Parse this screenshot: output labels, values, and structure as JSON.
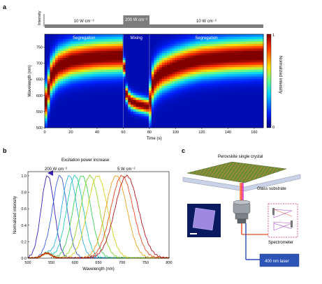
{
  "panel_a": {
    "label": "a",
    "intensity_axis_label": "Intensity",
    "segments": [
      {
        "power": "10 W cm⁻²",
        "region": "Segregation",
        "t_start": 0,
        "t_end": 60
      },
      {
        "power": "200 W cm⁻²",
        "region": "Mixing",
        "t_start": 60,
        "t_end": 80
      },
      {
        "power": "10 W cm⁻²",
        "region": "Segregation",
        "t_start": 80,
        "t_end": 167
      }
    ],
    "colorbar": {
      "label": "Normalized intensity",
      "max": "1",
      "min": "0"
    }
  },
  "panel_b": {
    "label": "b",
    "title": "Excitation power increase",
    "left_power": "200 W cm⁻²",
    "right_power": "5 W cm⁻²"
  },
  "panel_c": {
    "label": "c",
    "crystal_label": "Perovskite single crystal",
    "glass_label": "Glass substrate",
    "spectrometer_label": "Spectrometer",
    "laser_label": "400 nm laser"
  },
  "chart_data": [
    {
      "type": "heatmap",
      "xlabel": "Time (s)",
      "ylabel": "Wavelength (nm)",
      "xlim": [
        0,
        167
      ],
      "ylim": [
        500,
        790
      ],
      "x_ticks": [
        0,
        20,
        40,
        60,
        80,
        100,
        120,
        140,
        160
      ],
      "y_ticks": [
        500,
        550,
        600,
        650,
        700,
        750
      ],
      "peak_wavelength_trace": {
        "time": [
          0,
          5,
          10,
          20,
          30,
          40,
          50,
          60,
          62,
          65,
          70,
          75,
          80,
          82,
          85,
          90,
          100,
          110,
          120,
          140,
          160,
          167
        ],
        "wavelength": [
          560,
          660,
          690,
          708,
          715,
          720,
          722,
          724,
          610,
          585,
          575,
          570,
          565,
          630,
          655,
          672,
          690,
          703,
          712,
          720,
          724,
          725
        ]
      },
      "colorbar_range": [
        0,
        1
      ]
    },
    {
      "type": "line",
      "xlabel": "Wavelength (nm)",
      "ylabel": "Normalized intensity",
      "xlim": [
        500,
        800
      ],
      "ylim": [
        0,
        1.05
      ],
      "x_ticks": [
        500,
        550,
        600,
        650,
        700,
        750,
        800
      ],
      "y_ticks": [
        0,
        0.2,
        0.4,
        0.6,
        0.8,
        1.0
      ],
      "series": [
        {
          "peak": 542,
          "color": "#3a1fb5"
        },
        {
          "peak": 568,
          "color": "#3b5fd9"
        },
        {
          "peak": 588,
          "color": "#2fb0e0"
        },
        {
          "peak": 600,
          "color": "#22c8b8"
        },
        {
          "peak": 615,
          "color": "#3fcf5a"
        },
        {
          "peak": 632,
          "color": "#8fd62a"
        },
        {
          "peak": 648,
          "color": "#d6d01c"
        },
        {
          "peak": 688,
          "color": "#f0a020"
        },
        {
          "peak": 700,
          "color": "#e84a1c"
        },
        {
          "peak": 710,
          "color": "#b3121a"
        }
      ]
    }
  ]
}
